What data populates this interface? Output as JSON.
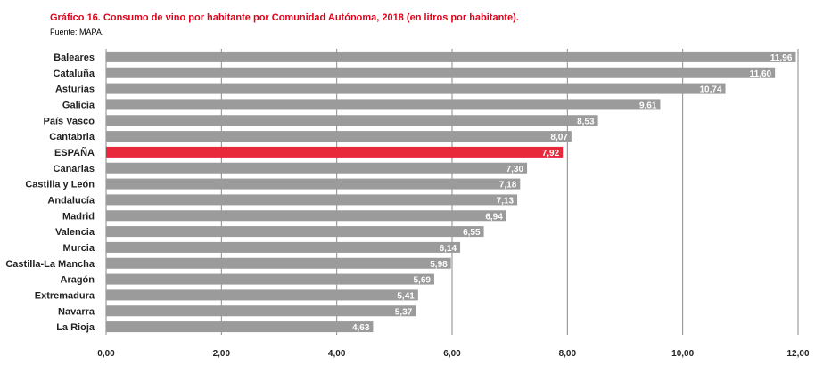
{
  "header": {
    "title": "Gráfico 16. Consumo de vino por habitante por Comunidad Autónoma, 2018 (en litros por habitante).",
    "source": "Fuente: MAPA."
  },
  "colors": {
    "bar": "#9b9b9b",
    "highlight": "#e8283b",
    "grid": "#8a8a8a"
  },
  "chart_data": {
    "type": "bar",
    "orientation": "horizontal",
    "categories": [
      "Baleares",
      "Cataluña",
      "Asturias",
      "Galicia",
      "País Vasco",
      "Cantabria",
      "ESPAÑA",
      "Canarias",
      "Castilla y León",
      "Andalucía",
      "Madrid",
      "Valencia",
      "Murcia",
      "Castilla-La Mancha",
      "Aragón",
      "Extremadura",
      "Navarra",
      "La Rioja"
    ],
    "values": [
      11.96,
      11.6,
      10.74,
      9.61,
      8.53,
      8.07,
      7.92,
      7.3,
      7.18,
      7.13,
      6.94,
      6.55,
      6.14,
      5.98,
      5.69,
      5.41,
      5.37,
      4.63
    ],
    "value_labels": [
      "11,96",
      "11,60",
      "10,74",
      "9,61",
      "8,53",
      "8,07",
      "7,92",
      "7,30",
      "7,18",
      "7,13",
      "6,94",
      "6,55",
      "6,14",
      "5,98",
      "5,69",
      "5,41",
      "5,37",
      "4,63"
    ],
    "highlight": "ESPAÑA",
    "xlim": [
      0,
      12
    ],
    "xticks": [
      0,
      2,
      4,
      6,
      8,
      10,
      12
    ],
    "xtick_labels": [
      "0,00",
      "2,00",
      "4,00",
      "6,00",
      "8,00",
      "10,00",
      "12,00"
    ],
    "grid": "vertical"
  }
}
